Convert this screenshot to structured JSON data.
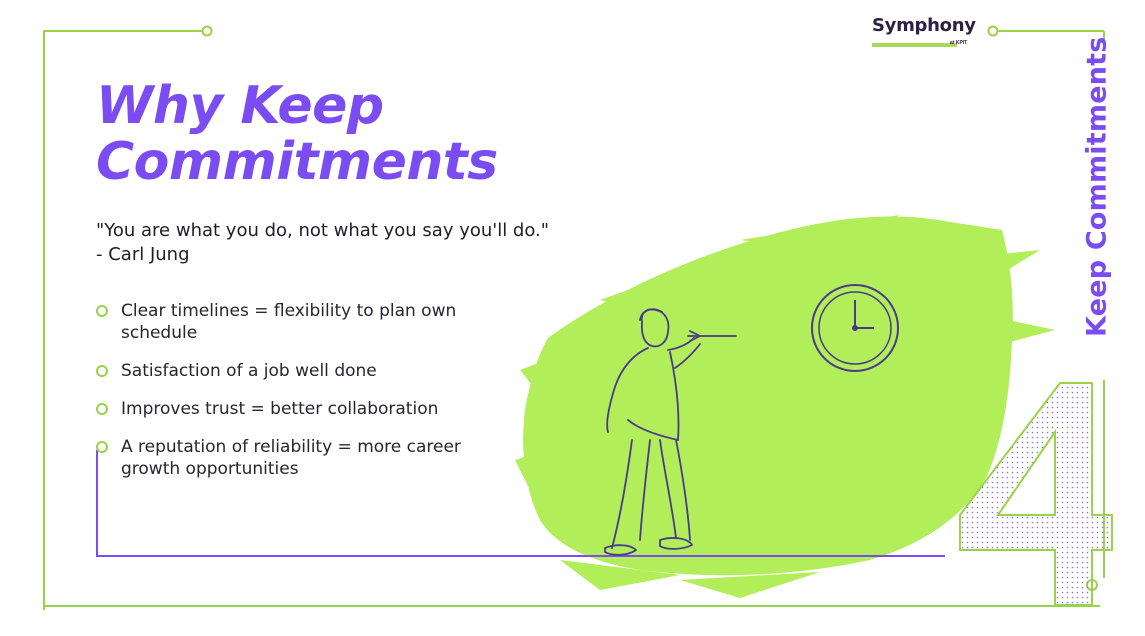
{
  "colors": {
    "accent": "#7a4cf2",
    "lime": "#b1ee5a",
    "frame": "#9ad24a",
    "dark": "#1e1e2a"
  },
  "brand": {
    "logo_text": "Symphony",
    "logo_sub": "at KPIT"
  },
  "slide": {
    "title_line1": "Why Keep",
    "title_line2": "Commitments",
    "quote_line1": "\"You are what you do, not what you say you'll do.\"",
    "quote_line2": "- Carl Jung",
    "bullets": [
      "Clear timelines = flexibility to plan own schedule",
      "Satisfaction of a job well done",
      "Improves trust = better collaboration",
      "A reputation of reliability = more career growth opportunities"
    ],
    "side_label": "Keep Commitments",
    "big_number": "4"
  },
  "icons": [
    "clock-icon",
    "dart-thrower-illustration",
    "bullet-ring-icon"
  ]
}
